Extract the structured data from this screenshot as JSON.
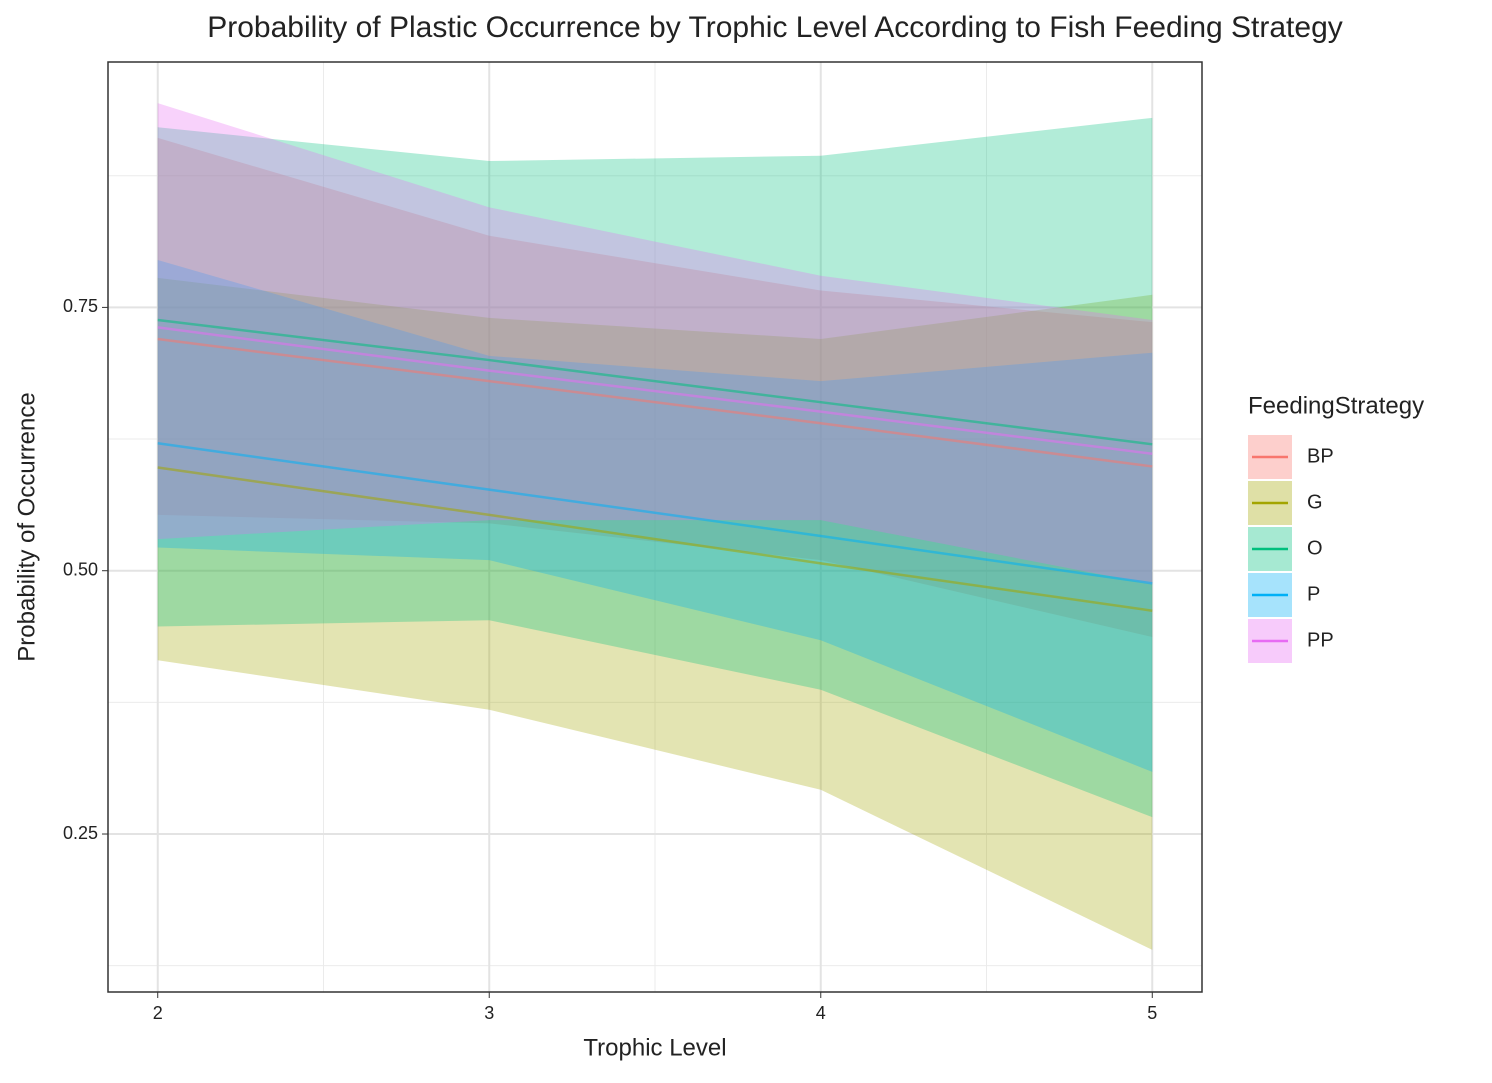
{
  "chart_data": {
    "type": "line",
    "title": "Probability of Plastic Occurrence by Trophic Level According to Fish Feeding Strategy",
    "x_label": "Trophic Level",
    "y_label": "Probability of Occurrence",
    "legend_title": "FeedingStrategy",
    "legend_position": "right",
    "x": [
      2,
      3,
      4,
      5
    ],
    "series": [
      {
        "name": "BP",
        "color": "#F8766D",
        "values": [
          0.72,
          0.68,
          0.64,
          0.599
        ],
        "lower": [
          0.553,
          0.545,
          0.51,
          0.437
        ],
        "upper": [
          0.911,
          0.818,
          0.766,
          0.736
        ]
      },
      {
        "name": "G",
        "color": "#A3A500",
        "values": [
          0.598,
          0.553,
          0.507,
          0.462
        ],
        "lower": [
          0.415,
          0.368,
          0.292,
          0.14
        ],
        "upper": [
          0.778,
          0.74,
          0.72,
          0.762
        ]
      },
      {
        "name": "O",
        "color": "#00BF7D",
        "values": [
          0.738,
          0.7,
          0.66,
          0.62
        ],
        "lower": [
          0.447,
          0.453,
          0.387,
          0.266
        ],
        "upper": [
          0.921,
          0.889,
          0.894,
          0.93
        ]
      },
      {
        "name": "P",
        "color": "#00B0F6",
        "values": [
          0.621,
          0.577,
          0.533,
          0.488
        ],
        "lower": [
          0.522,
          0.51,
          0.434,
          0.309
        ],
        "upper": [
          0.795,
          0.704,
          0.68,
          0.707
        ]
      },
      {
        "name": "PP",
        "color": "#E76BF3",
        "values": [
          0.731,
          0.69,
          0.651,
          0.611
        ],
        "lower": [
          0.53,
          0.548,
          0.548,
          0.487
        ],
        "upper": [
          0.944,
          0.845,
          0.78,
          0.738
        ]
      }
    ],
    "xlim": [
      1.85,
      5.15
    ],
    "ylim": [
      0.1,
      0.983
    ],
    "xticks": [
      2,
      3,
      4,
      5
    ],
    "yticks": [
      0.25,
      {
        "value": 0.5,
        "label": "0.50"
      },
      0.75
    ],
    "x_minor_grid": [
      2.5,
      3.5,
      4.5
    ],
    "y_minor_grid": [
      0.125,
      0.375,
      0.625,
      0.875
    ],
    "grid": true
  }
}
